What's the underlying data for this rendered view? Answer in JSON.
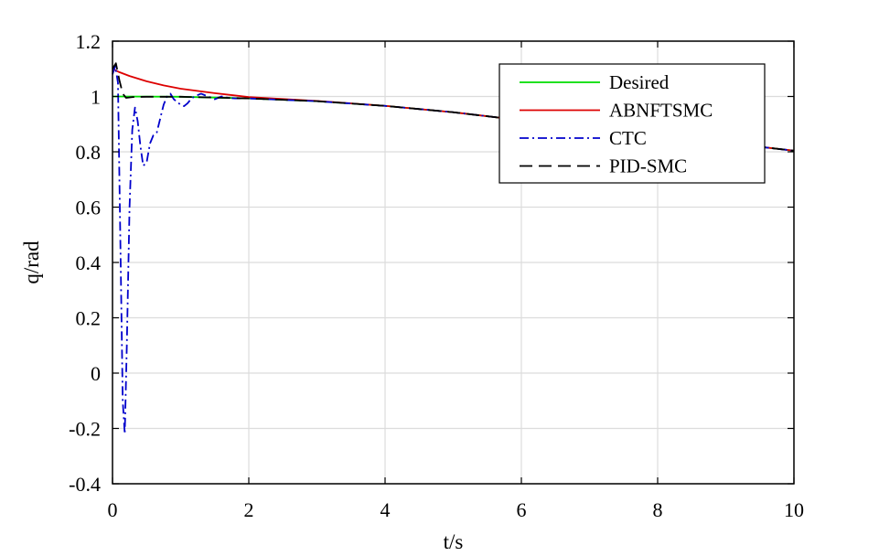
{
  "chart_data": {
    "type": "line",
    "title": "",
    "xlabel": "t/s",
    "ylabel": "q/rad",
    "xlim": [
      0,
      10
    ],
    "ylim": [
      -0.4,
      1.2
    ],
    "xticks": [
      0,
      2,
      4,
      6,
      8,
      10
    ],
    "yticks": [
      -0.4,
      -0.2,
      0,
      0.2,
      0.4,
      0.6,
      0.8,
      1,
      1.2
    ],
    "xtick_labels": [
      "0",
      "2",
      "4",
      "6",
      "8",
      "10"
    ],
    "ytick_labels": [
      "-0.4",
      "-0.2",
      "0",
      "0.2",
      "0.4",
      "0.6",
      "0.8",
      "1",
      "1.2"
    ],
    "grid": true,
    "legend_position": "top-right",
    "series": [
      {
        "name": "Desired",
        "color": "#00dd00",
        "dash": "solid",
        "x": [
          0,
          1,
          2,
          3,
          4,
          5,
          6,
          7,
          8,
          9,
          10
        ],
        "y": [
          1.0,
          0.999,
          0.993,
          0.983,
          0.966,
          0.943,
          0.914,
          0.882,
          0.858,
          0.832,
          0.804
        ]
      },
      {
        "name": "ABNFTSMC",
        "color": "#dd0000",
        "dash": "solid",
        "x": [
          0,
          0.1,
          0.25,
          0.5,
          0.75,
          1.0,
          1.5,
          2,
          3,
          4,
          5,
          6,
          7,
          8,
          9,
          10
        ],
        "y": [
          1.1,
          1.088,
          1.074,
          1.055,
          1.04,
          1.028,
          1.012,
          0.998,
          0.984,
          0.966,
          0.943,
          0.914,
          0.882,
          0.858,
          0.832,
          0.804
        ]
      },
      {
        "name": "CTC",
        "color": "#0000cc",
        "dash": "dashdot",
        "x": [
          0,
          0.04,
          0.08,
          0.12,
          0.15,
          0.18,
          0.21,
          0.25,
          0.29,
          0.33,
          0.37,
          0.41,
          0.45,
          0.5,
          0.55,
          0.6,
          0.65,
          0.7,
          0.75,
          0.8,
          0.85,
          0.9,
          0.95,
          1.0,
          1.05,
          1.1,
          1.15,
          1.2,
          1.3,
          1.4,
          1.5,
          1.6,
          1.7,
          1.8,
          2.0,
          3,
          4,
          5,
          6,
          7,
          8,
          9,
          10
        ],
        "y": [
          1.08,
          1.11,
          1.05,
          0.4,
          -0.1,
          -0.22,
          0.1,
          0.6,
          0.88,
          0.96,
          0.91,
          0.82,
          0.75,
          0.76,
          0.83,
          0.86,
          0.87,
          0.92,
          0.97,
          1.0,
          1.01,
          0.99,
          0.98,
          0.97,
          0.965,
          0.975,
          0.99,
          1.0,
          1.01,
          1.0,
          0.99,
          1.0,
          0.995,
          0.993,
          0.993,
          0.983,
          0.966,
          0.943,
          0.914,
          0.882,
          0.858,
          0.832,
          0.804
        ]
      },
      {
        "name": "PID-SMC",
        "color": "#000000",
        "dash": "dashed",
        "x": [
          0,
          0.05,
          0.1,
          0.15,
          0.2,
          0.3,
          0.5,
          1,
          2,
          3,
          4,
          5,
          6,
          7,
          8,
          9,
          10
        ],
        "y": [
          1.1,
          1.12,
          1.06,
          1.01,
          0.995,
          0.998,
          0.999,
          0.999,
          0.993,
          0.983,
          0.966,
          0.943,
          0.914,
          0.882,
          0.858,
          0.832,
          0.804
        ]
      }
    ]
  }
}
